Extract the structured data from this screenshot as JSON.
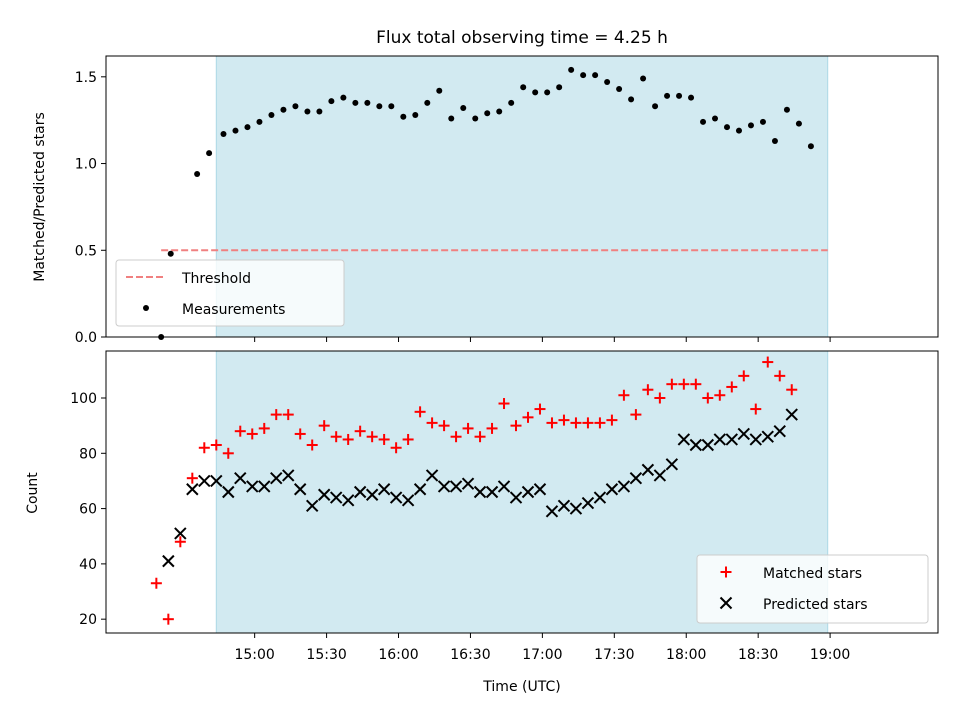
{
  "chart_data": {
    "title": "Flux total observing time = 4.25 h",
    "xlabel": "Time (UTC)",
    "x_tick_labels": [
      "15:00",
      "15:30",
      "16:00",
      "16:30",
      "17:00",
      "17:30",
      "18:00",
      "18:30",
      "19:00"
    ],
    "x_tick_minutes": [
      900,
      930,
      960,
      990,
      1020,
      1050,
      1080,
      1110,
      1140
    ],
    "xlim_minutes": [
      838,
      1185
    ],
    "observing_window_minutes": [
      884,
      1139
    ],
    "colors": {
      "band": "#add8e6",
      "threshold": "#f08080",
      "matched": "#ff0000",
      "predicted": "#000000",
      "ratio": "#000000"
    },
    "panels": [
      {
        "type": "scatter",
        "ylabel": "Matched/Predicted stars",
        "ylim": [
          0,
          1.62
        ],
        "y_ticks": [
          0.0,
          0.5,
          1.0,
          1.5
        ],
        "y_tick_labels": [
          "0.0",
          "0.5",
          "1.0",
          "1.5"
        ],
        "legend": {
          "position": "lower-left",
          "entries": [
            "Threshold",
            "Measurements"
          ]
        },
        "threshold": {
          "name": "Threshold",
          "value": 0.5,
          "x_range_minutes": [
            861,
            1139
          ]
        },
        "series": [
          {
            "name": "Measurements",
            "marker": "dot",
            "points": [
              [
                861,
                0.0
              ],
              [
                865,
                0.48
              ],
              [
                876,
                0.94
              ],
              [
                881,
                1.06
              ],
              [
                887,
                1.17
              ],
              [
                892,
                1.19
              ],
              [
                897,
                1.21
              ],
              [
                902,
                1.24
              ],
              [
                907,
                1.28
              ],
              [
                912,
                1.31
              ],
              [
                917,
                1.33
              ],
              [
                922,
                1.3
              ],
              [
                927,
                1.3
              ],
              [
                932,
                1.36
              ],
              [
                937,
                1.38
              ],
              [
                942,
                1.35
              ],
              [
                947,
                1.35
              ],
              [
                952,
                1.33
              ],
              [
                957,
                1.33
              ],
              [
                962,
                1.27
              ],
              [
                967,
                1.28
              ],
              [
                972,
                1.35
              ],
              [
                977,
                1.42
              ],
              [
                982,
                1.26
              ],
              [
                987,
                1.32
              ],
              [
                992,
                1.26
              ],
              [
                997,
                1.29
              ],
              [
                1002,
                1.3
              ],
              [
                1007,
                1.35
              ],
              [
                1012,
                1.44
              ],
              [
                1017,
                1.41
              ],
              [
                1022,
                1.41
              ],
              [
                1027,
                1.44
              ],
              [
                1032,
                1.54
              ],
              [
                1037,
                1.51
              ],
              [
                1042,
                1.51
              ],
              [
                1047,
                1.47
              ],
              [
                1052,
                1.43
              ],
              [
                1057,
                1.37
              ],
              [
                1062,
                1.49
              ],
              [
                1067,
                1.33
              ],
              [
                1072,
                1.39
              ],
              [
                1077,
                1.39
              ],
              [
                1082,
                1.38
              ],
              [
                1087,
                1.24
              ],
              [
                1092,
                1.26
              ],
              [
                1097,
                1.21
              ],
              [
                1102,
                1.19
              ],
              [
                1107,
                1.22
              ],
              [
                1112,
                1.24
              ],
              [
                1117,
                1.13
              ],
              [
                1122,
                1.31
              ],
              [
                1127,
                1.23
              ],
              [
                1132,
                1.1
              ]
            ]
          }
        ]
      },
      {
        "type": "scatter",
        "ylabel": "Count",
        "ylim": [
          15,
          117
        ],
        "y_ticks": [
          20,
          40,
          60,
          80,
          100
        ],
        "y_tick_labels": [
          "20",
          "40",
          "60",
          "80",
          "100"
        ],
        "legend": {
          "position": "lower-right",
          "entries": [
            "Matched stars",
            "Predicted stars"
          ]
        },
        "series": [
          {
            "name": "Matched stars",
            "marker": "plus",
            "points": [
              [
                859,
                33
              ],
              [
                864,
                20
              ],
              [
                869,
                48
              ],
              [
                874,
                71
              ],
              [
                879,
                82
              ],
              [
                884,
                83
              ],
              [
                889,
                80
              ],
              [
                894,
                88
              ],
              [
                899,
                87
              ],
              [
                904,
                89
              ],
              [
                909,
                94
              ],
              [
                914,
                94
              ],
              [
                919,
                87
              ],
              [
                924,
                83
              ],
              [
                929,
                90
              ],
              [
                934,
                86
              ],
              [
                939,
                85
              ],
              [
                944,
                88
              ],
              [
                949,
                86
              ],
              [
                954,
                85
              ],
              [
                959,
                82
              ],
              [
                964,
                85
              ],
              [
                969,
                95
              ],
              [
                974,
                91
              ],
              [
                979,
                90
              ],
              [
                984,
                86
              ],
              [
                989,
                89
              ],
              [
                994,
                86
              ],
              [
                999,
                89
              ],
              [
                1004,
                98
              ],
              [
                1009,
                90
              ],
              [
                1014,
                93
              ],
              [
                1019,
                96
              ],
              [
                1024,
                91
              ],
              [
                1029,
                92
              ],
              [
                1034,
                91
              ],
              [
                1039,
                91
              ],
              [
                1044,
                91
              ],
              [
                1049,
                92
              ],
              [
                1054,
                101
              ],
              [
                1059,
                94
              ],
              [
                1064,
                103
              ],
              [
                1069,
                100
              ],
              [
                1074,
                105
              ],
              [
                1079,
                105
              ],
              [
                1084,
                105
              ],
              [
                1089,
                100
              ],
              [
                1094,
                101
              ],
              [
                1099,
                104
              ],
              [
                1104,
                108
              ],
              [
                1109,
                96
              ],
              [
                1114,
                113
              ],
              [
                1119,
                108
              ],
              [
                1124,
                103
              ]
            ]
          },
          {
            "name": "Predicted stars",
            "marker": "x",
            "points": [
              [
                864,
                41
              ],
              [
                869,
                51
              ],
              [
                874,
                67
              ],
              [
                879,
                70
              ],
              [
                884,
                70
              ],
              [
                889,
                66
              ],
              [
                894,
                71
              ],
              [
                899,
                68
              ],
              [
                904,
                68
              ],
              [
                909,
                71
              ],
              [
                914,
                72
              ],
              [
                919,
                67
              ],
              [
                924,
                61
              ],
              [
                929,
                65
              ],
              [
                934,
                64
              ],
              [
                939,
                63
              ],
              [
                944,
                66
              ],
              [
                949,
                65
              ],
              [
                954,
                67
              ],
              [
                959,
                64
              ],
              [
                964,
                63
              ],
              [
                969,
                67
              ],
              [
                974,
                72
              ],
              [
                979,
                68
              ],
              [
                984,
                68
              ],
              [
                989,
                69
              ],
              [
                994,
                66
              ],
              [
                999,
                66
              ],
              [
                1004,
                68
              ],
              [
                1009,
                64
              ],
              [
                1014,
                66
              ],
              [
                1019,
                67
              ],
              [
                1024,
                59
              ],
              [
                1029,
                61
              ],
              [
                1034,
                60
              ],
              [
                1039,
                62
              ],
              [
                1044,
                64
              ],
              [
                1049,
                67
              ],
              [
                1054,
                68
              ],
              [
                1059,
                71
              ],
              [
                1064,
                74
              ],
              [
                1069,
                72
              ],
              [
                1074,
                76
              ],
              [
                1079,
                85
              ],
              [
                1084,
                83
              ],
              [
                1089,
                83
              ],
              [
                1094,
                85
              ],
              [
                1099,
                85
              ],
              [
                1104,
                87
              ],
              [
                1109,
                85
              ],
              [
                1114,
                86
              ],
              [
                1119,
                88
              ],
              [
                1124,
                94
              ]
            ]
          }
        ]
      }
    ]
  }
}
